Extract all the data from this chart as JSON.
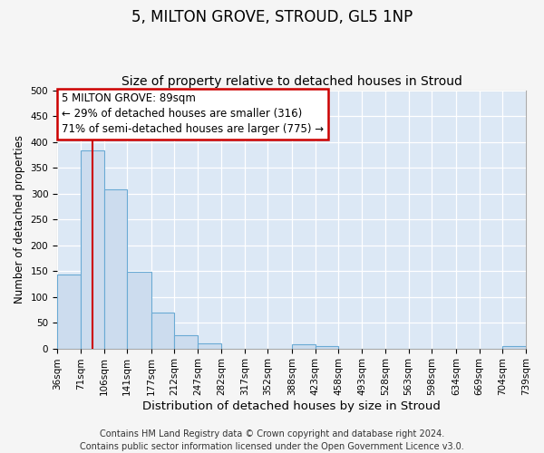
{
  "title": "5, MILTON GROVE, STROUD, GL5 1NP",
  "subtitle": "Size of property relative to detached houses in Stroud",
  "xlabel": "Distribution of detached houses by size in Stroud",
  "ylabel": "Number of detached properties",
  "bin_edges": [
    36,
    71,
    106,
    141,
    177,
    212,
    247,
    282,
    317,
    352,
    388,
    423,
    458,
    493,
    528,
    563,
    598,
    634,
    669,
    704,
    739
  ],
  "bin_labels": [
    "36sqm",
    "71sqm",
    "106sqm",
    "141sqm",
    "177sqm",
    "212sqm",
    "247sqm",
    "282sqm",
    "317sqm",
    "352sqm",
    "388sqm",
    "423sqm",
    "458sqm",
    "493sqm",
    "528sqm",
    "563sqm",
    "598sqm",
    "634sqm",
    "669sqm",
    "704sqm",
    "739sqm"
  ],
  "bar_heights": [
    143,
    383,
    308,
    149,
    70,
    25,
    10,
    0,
    0,
    0,
    8,
    5,
    0,
    0,
    0,
    0,
    0,
    0,
    0,
    5
  ],
  "bar_color": "#ccdcee",
  "bar_edgecolor": "#6aaad4",
  "property_size": 89,
  "vline_color": "#cc0000",
  "annotation_line1": "5 MILTON GROVE: 89sqm",
  "annotation_line2": "← 29% of detached houses are smaller (316)",
  "annotation_line3": "71% of semi-detached houses are larger (775) →",
  "annotation_box_facecolor": "#ffffff",
  "annotation_box_edgecolor": "#cc0000",
  "ylim": [
    0,
    500
  ],
  "yticks": [
    0,
    50,
    100,
    150,
    200,
    250,
    300,
    350,
    400,
    450,
    500
  ],
  "figure_background_color": "#f5f5f5",
  "plot_background_color": "#dce8f5",
  "grid_color": "#ffffff",
  "footer_line1": "Contains HM Land Registry data © Crown copyright and database right 2024.",
  "footer_line2": "Contains public sector information licensed under the Open Government Licence v3.0.",
  "title_fontsize": 12,
  "subtitle_fontsize": 10,
  "xlabel_fontsize": 9.5,
  "ylabel_fontsize": 8.5,
  "tick_fontsize": 7.5,
  "annotation_fontsize": 8.5,
  "footer_fontsize": 7
}
